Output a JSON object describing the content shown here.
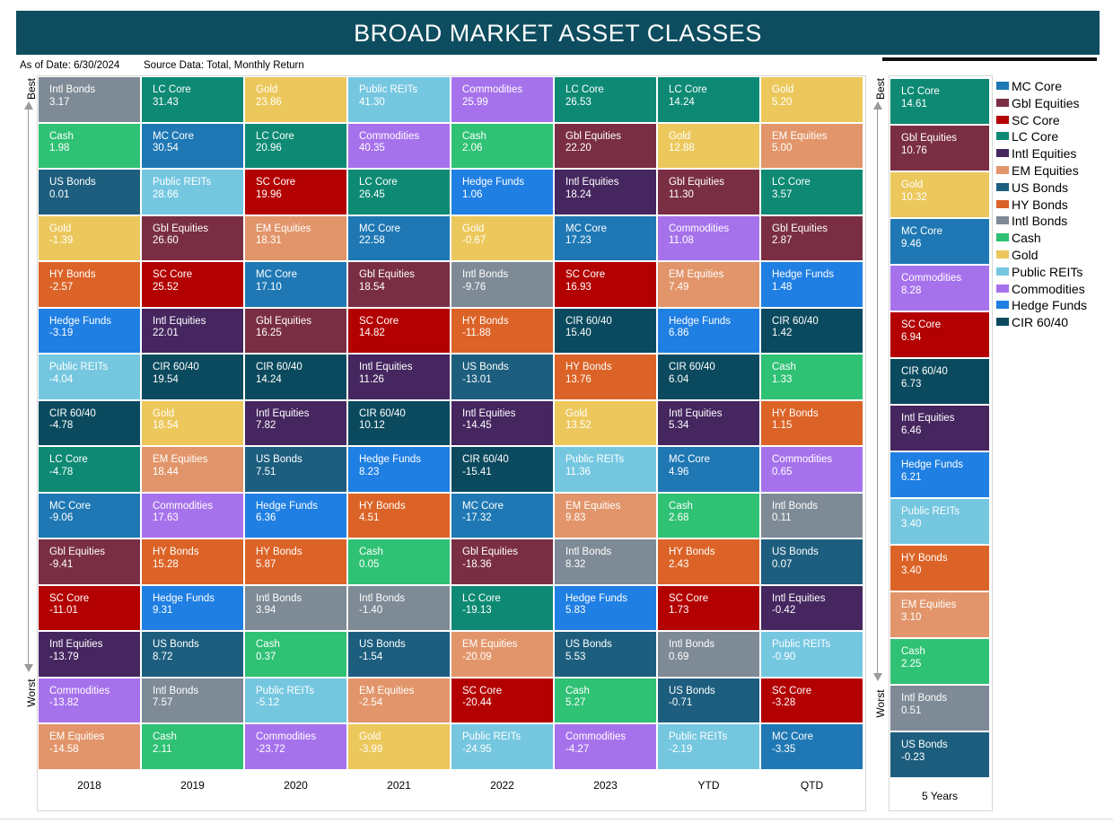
{
  "title": "BROAD MARKET ASSET CLASSES",
  "subtitle": {
    "as_of": "As of Date: 6/30/2024",
    "source": "Source Data: Total, Monthly Return"
  },
  "axis": {
    "best": "Best",
    "worst": "Worst"
  },
  "colors": {
    "MC Core": "#1f78b4",
    "Gbl Equities": "#7a2e44",
    "SC Core": "#b30000",
    "LC Core": "#0e8a74",
    "Intl Equities": "#45265f",
    "EM Equities": "#e2956a",
    "US Bonds": "#1d5e7e",
    "HY Bonds": "#dc6327",
    "Intl Bonds": "#7e8a96",
    "Cash": "#2fc174",
    "Gold": "#ecc85c",
    "Public REITs": "#75c7e0",
    "Commodities": "#a672ec",
    "Hedge Funds": "#1f7fe3",
    "CIR 60/40": "#0b4a5e"
  },
  "chart_data": [
    {
      "type": "table",
      "title": "BROAD MARKET ASSET CLASSES",
      "columns": [
        "2018",
        "2019",
        "2020",
        "2021",
        "2022",
        "2023",
        "YTD",
        "QTD"
      ],
      "rank_labels": {
        "top": "Best",
        "bottom": "Worst"
      },
      "grid": [
        [
          {
            "asset": "Intl Bonds",
            "value": "3.17"
          },
          {
            "asset": "Cash",
            "value": "1.98"
          },
          {
            "asset": "US Bonds",
            "value": "0.01"
          },
          {
            "asset": "Gold",
            "value": "-1.39"
          },
          {
            "asset": "HY Bonds",
            "value": "-2.57"
          },
          {
            "asset": "Hedge Funds",
            "value": "-3.19"
          },
          {
            "asset": "Public REITs",
            "value": "-4.04"
          },
          {
            "asset": "CIR 60/40",
            "value": "-4.78"
          },
          {
            "asset": "LC Core",
            "value": "-4.78"
          },
          {
            "asset": "MC Core",
            "value": "-9.06"
          },
          {
            "asset": "Gbl Equities",
            "value": "-9.41"
          },
          {
            "asset": "SC Core",
            "value": "-11.01"
          },
          {
            "asset": "Intl Equities",
            "value": "-13.79"
          },
          {
            "asset": "Commodities",
            "value": "-13.82"
          },
          {
            "asset": "EM Equities",
            "value": "-14.58"
          }
        ],
        [
          {
            "asset": "LC Core",
            "value": "31.43"
          },
          {
            "asset": "MC Core",
            "value": "30.54"
          },
          {
            "asset": "Public REITs",
            "value": "28.66"
          },
          {
            "asset": "Gbl Equities",
            "value": "26.60"
          },
          {
            "asset": "SC Core",
            "value": "25.52"
          },
          {
            "asset": "Intl Equities",
            "value": "22.01"
          },
          {
            "asset": "CIR 60/40",
            "value": "19.54"
          },
          {
            "asset": "Gold",
            "value": "18.54"
          },
          {
            "asset": "EM Equities",
            "value": "18.44"
          },
          {
            "asset": "Commodities",
            "value": "17.63"
          },
          {
            "asset": "HY Bonds",
            "value": "15.28"
          },
          {
            "asset": "Hedge Funds",
            "value": "9.31"
          },
          {
            "asset": "US Bonds",
            "value": "8.72"
          },
          {
            "asset": "Intl Bonds",
            "value": "7.57"
          },
          {
            "asset": "Cash",
            "value": "2.11"
          }
        ],
        [
          {
            "asset": "Gold",
            "value": "23.86"
          },
          {
            "asset": "LC Core",
            "value": "20.96"
          },
          {
            "asset": "SC Core",
            "value": "19.96"
          },
          {
            "asset": "EM Equities",
            "value": "18.31"
          },
          {
            "asset": "MC Core",
            "value": "17.10"
          },
          {
            "asset": "Gbl Equities",
            "value": "16.25"
          },
          {
            "asset": "CIR 60/40",
            "value": "14.24"
          },
          {
            "asset": "Intl Equities",
            "value": "7.82"
          },
          {
            "asset": "US Bonds",
            "value": "7.51"
          },
          {
            "asset": "Hedge Funds",
            "value": "6.36"
          },
          {
            "asset": "HY Bonds",
            "value": "5.87"
          },
          {
            "asset": "Intl Bonds",
            "value": "3.94"
          },
          {
            "asset": "Cash",
            "value": "0.37"
          },
          {
            "asset": "Public REITs",
            "value": "-5.12"
          },
          {
            "asset": "Commodities",
            "value": "-23.72"
          }
        ],
        [
          {
            "asset": "Public REITs",
            "value": "41.30"
          },
          {
            "asset": "Commodities",
            "value": "40.35"
          },
          {
            "asset": "LC Core",
            "value": "26.45"
          },
          {
            "asset": "MC Core",
            "value": "22.58"
          },
          {
            "asset": "Gbl Equities",
            "value": "18.54"
          },
          {
            "asset": "SC Core",
            "value": "14.82"
          },
          {
            "asset": "Intl Equities",
            "value": "11.26"
          },
          {
            "asset": "CIR 60/40",
            "value": "10.12"
          },
          {
            "asset": "Hedge Funds",
            "value": "8.23"
          },
          {
            "asset": "HY Bonds",
            "value": "4.51"
          },
          {
            "asset": "Cash",
            "value": "0.05"
          },
          {
            "asset": "Intl Bonds",
            "value": "-1.40"
          },
          {
            "asset": "US Bonds",
            "value": "-1.54"
          },
          {
            "asset": "EM Equities",
            "value": "-2.54"
          },
          {
            "asset": "Gold",
            "value": "-3.99"
          }
        ],
        [
          {
            "asset": "Commodities",
            "value": "25.99"
          },
          {
            "asset": "Cash",
            "value": "2.06"
          },
          {
            "asset": "Hedge Funds",
            "value": "1.06"
          },
          {
            "asset": "Gold",
            "value": "-0.67"
          },
          {
            "asset": "Intl Bonds",
            "value": "-9.76"
          },
          {
            "asset": "HY Bonds",
            "value": "-11.88"
          },
          {
            "asset": "US Bonds",
            "value": "-13.01"
          },
          {
            "asset": "Intl Equities",
            "value": "-14.45"
          },
          {
            "asset": "CIR 60/40",
            "value": "-15.41"
          },
          {
            "asset": "MC Core",
            "value": "-17.32"
          },
          {
            "asset": "Gbl Equities",
            "value": "-18.36"
          },
          {
            "asset": "LC Core",
            "value": "-19.13"
          },
          {
            "asset": "EM Equities",
            "value": "-20.09"
          },
          {
            "asset": "SC Core",
            "value": "-20.44"
          },
          {
            "asset": "Public REITs",
            "value": "-24.95"
          }
        ],
        [
          {
            "asset": "LC Core",
            "value": "26.53"
          },
          {
            "asset": "Gbl Equities",
            "value": "22.20"
          },
          {
            "asset": "Intl Equities",
            "value": "18.24"
          },
          {
            "asset": "MC Core",
            "value": "17.23"
          },
          {
            "asset": "SC Core",
            "value": "16.93"
          },
          {
            "asset": "CIR 60/40",
            "value": "15.40"
          },
          {
            "asset": "HY Bonds",
            "value": "13.76"
          },
          {
            "asset": "Gold",
            "value": "13.52"
          },
          {
            "asset": "Public REITs",
            "value": "11.36"
          },
          {
            "asset": "EM Equities",
            "value": "9.83"
          },
          {
            "asset": "Intl Bonds",
            "value": "8.32"
          },
          {
            "asset": "Hedge Funds",
            "value": "5.83"
          },
          {
            "asset": "US Bonds",
            "value": "5.53"
          },
          {
            "asset": "Cash",
            "value": "5.27"
          },
          {
            "asset": "Commodities",
            "value": "-4.27"
          }
        ],
        [
          {
            "asset": "LC Core",
            "value": "14.24"
          },
          {
            "asset": "Gold",
            "value": "12.88"
          },
          {
            "asset": "Gbl Equities",
            "value": "11.30"
          },
          {
            "asset": "Commodities",
            "value": "11.08"
          },
          {
            "asset": "EM Equities",
            "value": "7.49"
          },
          {
            "asset": "Hedge Funds",
            "value": "6.86"
          },
          {
            "asset": "CIR 60/40",
            "value": "6.04"
          },
          {
            "asset": "Intl Equities",
            "value": "5.34"
          },
          {
            "asset": "MC Core",
            "value": "4.96"
          },
          {
            "asset": "Cash",
            "value": "2.68"
          },
          {
            "asset": "HY Bonds",
            "value": "2.43"
          },
          {
            "asset": "SC Core",
            "value": "1.73"
          },
          {
            "asset": "Intl Bonds",
            "value": "0.69"
          },
          {
            "asset": "US Bonds",
            "value": "-0.71"
          },
          {
            "asset": "Public REITs",
            "value": "-2.19"
          }
        ],
        [
          {
            "asset": "Gold",
            "value": "5.20"
          },
          {
            "asset": "EM Equities",
            "value": "5.00"
          },
          {
            "asset": "LC Core",
            "value": "3.57"
          },
          {
            "asset": "Gbl Equities",
            "value": "2.87"
          },
          {
            "asset": "Hedge Funds",
            "value": "1.48"
          },
          {
            "asset": "CIR 60/40",
            "value": "1.42"
          },
          {
            "asset": "Cash",
            "value": "1.33"
          },
          {
            "asset": "HY Bonds",
            "value": "1.15"
          },
          {
            "asset": "Commodities",
            "value": "0.65"
          },
          {
            "asset": "Intl Bonds",
            "value": "0.11"
          },
          {
            "asset": "US Bonds",
            "value": "0.07"
          },
          {
            "asset": "Intl Equities",
            "value": "-0.42"
          },
          {
            "asset": "Public REITs",
            "value": "-0.90"
          },
          {
            "asset": "SC Core",
            "value": "-3.28"
          },
          {
            "asset": "MC Core",
            "value": "-3.35"
          }
        ]
      ]
    },
    {
      "type": "table",
      "columns": [
        "5 Years"
      ],
      "rank_labels": {
        "top": "Best",
        "bottom": "Worst"
      },
      "grid": [
        [
          {
            "asset": "LC Core",
            "value": "14.61"
          },
          {
            "asset": "Gbl Equities",
            "value": "10.76"
          },
          {
            "asset": "Gold",
            "value": "10.32"
          },
          {
            "asset": "MC Core",
            "value": "9.46"
          },
          {
            "asset": "Commodities",
            "value": "8.28"
          },
          {
            "asset": "SC Core",
            "value": "6.94"
          },
          {
            "asset": "CIR 60/40",
            "value": "6.73"
          },
          {
            "asset": "Intl Equities",
            "value": "6.46"
          },
          {
            "asset": "Hedge Funds",
            "value": "6.21"
          },
          {
            "asset": "Public REITs",
            "value": "3.40"
          },
          {
            "asset": "HY Bonds",
            "value": "3.40"
          },
          {
            "asset": "EM Equities",
            "value": "3.10"
          },
          {
            "asset": "Cash",
            "value": "2.25"
          },
          {
            "asset": "Intl Bonds",
            "value": "0.51"
          },
          {
            "asset": "US Bonds",
            "value": "-0.23"
          }
        ]
      ]
    }
  ],
  "legend": [
    "MC Core",
    "Gbl Equities",
    "SC Core",
    "LC Core",
    "Intl Equities",
    "EM Equities",
    "US Bonds",
    "HY Bonds",
    "Intl Bonds",
    "Cash",
    "Gold",
    "Public REITs",
    "Commodities",
    "Hedge Funds",
    "CIR 60/40"
  ]
}
